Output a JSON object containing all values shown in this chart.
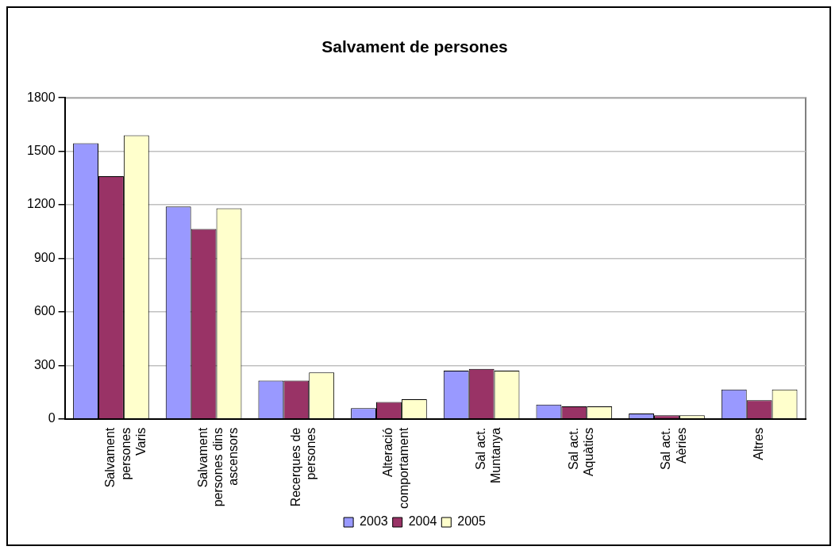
{
  "chart_data": {
    "type": "bar",
    "title": "Salvament de persones",
    "categories": [
      "Salvament persones Varis",
      "Salvament persones dins ascensors",
      "Recerques de persones",
      "Alteració comportament",
      "Sal act. Muntanya",
      "Sal act. Aquàtics",
      "Sal act. Aèries",
      "Altres"
    ],
    "series": [
      {
        "name": "2003",
        "color": "#9999ff",
        "values": [
          1545,
          1190,
          215,
          60,
          270,
          80,
          30,
          165
        ]
      },
      {
        "name": "2004",
        "color": "#993366",
        "values": [
          1360,
          1065,
          215,
          95,
          280,
          70,
          20,
          105
        ]
      },
      {
        "name": "2005",
        "color": "#ffffcc",
        "values": [
          1590,
          1180,
          260,
          110,
          270,
          70,
          20,
          165
        ]
      }
    ],
    "ylim": [
      0,
      1800
    ],
    "yticks": [
      0,
      300,
      600,
      900,
      1200,
      1500,
      1800
    ],
    "grid": "y",
    "legend": "bottom"
  }
}
